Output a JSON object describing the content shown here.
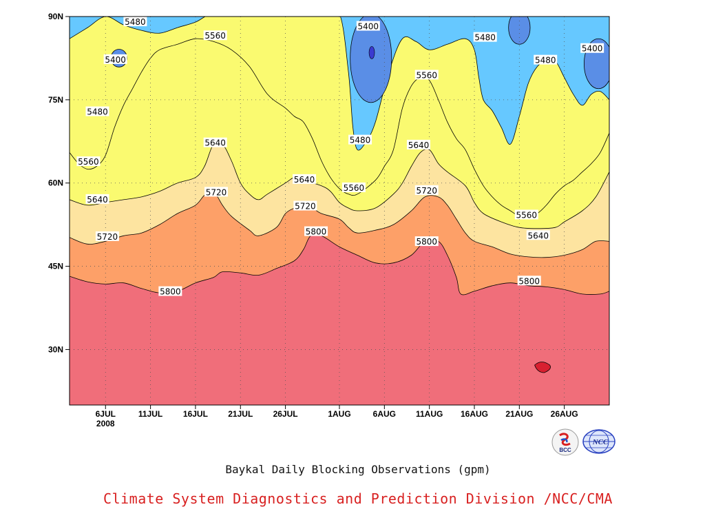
{
  "chart_title": "Baykal Daily Blocking Observations (gpm)",
  "credit": "Climate System Diagnostics and Prediction Division /NCC/CMA",
  "logos": {
    "bcc": {
      "icon": "bcc-logo",
      "text": "BCC"
    },
    "ncc": {
      "icon": "ncc-logo",
      "text": "NCC"
    }
  },
  "chart_data": {
    "type": "contour",
    "title": "Baykal Daily Blocking Observations (gpm)",
    "units": "gpm",
    "x_axis": {
      "start_date": "2008-07-02",
      "end_date": "2008-08-31",
      "ticks": [
        {
          "day": 4,
          "label": "6JUL",
          "sublabel": "2008"
        },
        {
          "day": 9,
          "label": "11JUL"
        },
        {
          "day": 14,
          "label": "16JUL"
        },
        {
          "day": 19,
          "label": "21JUL"
        },
        {
          "day": 24,
          "label": "26JUL"
        },
        {
          "day": 30,
          "label": "1AUG"
        },
        {
          "day": 35,
          "label": "6AUG"
        },
        {
          "day": 40,
          "label": "11AUG"
        },
        {
          "day": 45,
          "label": "16AUG"
        },
        {
          "day": 50,
          "label": "21AUG"
        },
        {
          "day": 55,
          "label": "26AUG"
        }
      ]
    },
    "y_axis": {
      "range": [
        20,
        90
      ],
      "ticks": [
        {
          "value": 30,
          "label": "30N"
        },
        {
          "value": 45,
          "label": "45N"
        },
        {
          "value": 60,
          "label": "60N"
        },
        {
          "value": 75,
          "label": "75N"
        },
        {
          "value": 90,
          "label": "90N"
        }
      ]
    },
    "grid": true,
    "levels": [
      5400,
      5480,
      5560,
      5640,
      5720,
      5800
    ],
    "fill_colors": {
      "lt5400": "#3a3ad0",
      "5400_5480": "#5a8ee6",
      "5480_5560": "#66c8ff",
      "5560_5640": "#fafa70",
      "5640_5720": "#fde4a0",
      "5720_5800": "#fda068",
      "5800_5880": "#ff7848",
      "gt5880": "#f06e7a",
      "max_spot": "#d82030"
    },
    "contours": {
      "c5800": [
        [
          0,
          43.2
        ],
        [
          2,
          42.2
        ],
        [
          4,
          41.8
        ],
        [
          6,
          42
        ],
        [
          8,
          41
        ],
        [
          10,
          40.2
        ],
        [
          12,
          40.5
        ],
        [
          14,
          42
        ],
        [
          16,
          43
        ],
        [
          17,
          44
        ],
        [
          19,
          43.8
        ],
        [
          21,
          43.4
        ],
        [
          23,
          44.6
        ],
        [
          25,
          46
        ],
        [
          26,
          48
        ],
        [
          26.8,
          50.5
        ],
        [
          28,
          50.5
        ],
        [
          30,
          48.5
        ],
        [
          32,
          47
        ],
        [
          34,
          45.6
        ],
        [
          36,
          45.6
        ],
        [
          38,
          47
        ],
        [
          39.5,
          49.5
        ],
        [
          41,
          49.5
        ],
        [
          42,
          47
        ],
        [
          43,
          43
        ],
        [
          43.5,
          40
        ],
        [
          45,
          40.5
        ],
        [
          47,
          41.5
        ],
        [
          49,
          42
        ],
        [
          51,
          41.5
        ],
        [
          53,
          41.3
        ],
        [
          55,
          40.8
        ],
        [
          57,
          40
        ],
        [
          59,
          40
        ],
        [
          60,
          40.5
        ]
      ],
      "c5720": [
        [
          0,
          50.2
        ],
        [
          2,
          49
        ],
        [
          4,
          49.5
        ],
        [
          6,
          50.5
        ],
        [
          8,
          51
        ],
        [
          10,
          52.5
        ],
        [
          12,
          54.5
        ],
        [
          14,
          56
        ],
        [
          15,
          57.8
        ],
        [
          16,
          58.5
        ],
        [
          17,
          56
        ],
        [
          18,
          54
        ],
        [
          20,
          51.5
        ],
        [
          21,
          50.5
        ],
        [
          23,
          52
        ],
        [
          24,
          54.5
        ],
        [
          25,
          55.5
        ],
        [
          26,
          56
        ],
        [
          27,
          55.5
        ],
        [
          28,
          54.5
        ],
        [
          30,
          53.5
        ],
        [
          31,
          52
        ],
        [
          32,
          51
        ],
        [
          34,
          51.5
        ],
        [
          36,
          52.5
        ],
        [
          38,
          55
        ],
        [
          39.5,
          57.5
        ],
        [
          41,
          57.5
        ],
        [
          42,
          56
        ],
        [
          43,
          53.5
        ],
        [
          44,
          51
        ],
        [
          45,
          49.5
        ],
        [
          47,
          48.5
        ],
        [
          49,
          47.2
        ],
        [
          51,
          46.7
        ],
        [
          53,
          46.6
        ],
        [
          55,
          47
        ],
        [
          57,
          48
        ],
        [
          58.5,
          49.5
        ],
        [
          60,
          49.5
        ]
      ],
      "c5640": [
        [
          0,
          57
        ],
        [
          2,
          56
        ],
        [
          4,
          56.5
        ],
        [
          6,
          57
        ],
        [
          8,
          57.5
        ],
        [
          10,
          58.5
        ],
        [
          12,
          60
        ],
        [
          14,
          61
        ],
        [
          15,
          63
        ],
        [
          16,
          67
        ],
        [
          17,
          67
        ],
        [
          18,
          64
        ],
        [
          19,
          60
        ],
        [
          20,
          58
        ],
        [
          21,
          57
        ],
        [
          22,
          58
        ],
        [
          24,
          60
        ],
        [
          25,
          61
        ],
        [
          26,
          60.5
        ],
        [
          28,
          59.5
        ],
        [
          29,
          58.5
        ],
        [
          30,
          56.5
        ],
        [
          31,
          55.5
        ],
        [
          32,
          55
        ],
        [
          34,
          55.5
        ],
        [
          36,
          58
        ],
        [
          37,
          60
        ],
        [
          38,
          63
        ],
        [
          39,
          65.5
        ],
        [
          40,
          66
        ],
        [
          41,
          63.5
        ],
        [
          42,
          62
        ],
        [
          44,
          59.5
        ],
        [
          45,
          56.5
        ],
        [
          46,
          54.5
        ],
        [
          48,
          53
        ],
        [
          50,
          52
        ],
        [
          52,
          51.8
        ],
        [
          54,
          52
        ],
        [
          55,
          53
        ],
        [
          57,
          55
        ],
        [
          58.5,
          57.5
        ],
        [
          60,
          62
        ]
      ],
      "c5560": [
        [
          0,
          65.5
        ],
        [
          1,
          63.5
        ],
        [
          2,
          62.5
        ],
        [
          3,
          63
        ],
        [
          4,
          65
        ],
        [
          5,
          70
        ],
        [
          6,
          74
        ],
        [
          7,
          77
        ],
        [
          8,
          80
        ],
        [
          9,
          82.5
        ],
        [
          10,
          84
        ],
        [
          12,
          85
        ],
        [
          14,
          86
        ],
        [
          16,
          85.5
        ],
        [
          18,
          84
        ],
        [
          20,
          81
        ],
        [
          22,
          76
        ],
        [
          24,
          73.5
        ],
        [
          25,
          72
        ],
        [
          26,
          71
        ],
        [
          27,
          68
        ],
        [
          28,
          64
        ],
        [
          29,
          61
        ],
        [
          30,
          59
        ],
        [
          31,
          58
        ],
        [
          32,
          58
        ],
        [
          34,
          60.5
        ],
        [
          35,
          63
        ],
        [
          36,
          66
        ],
        [
          37,
          73.5
        ],
        [
          38,
          77.5
        ],
        [
          39,
          79
        ],
        [
          40,
          78.5
        ],
        [
          41,
          75
        ],
        [
          42,
          71
        ],
        [
          43,
          68
        ],
        [
          44,
          66
        ],
        [
          45,
          62.5
        ],
        [
          46,
          59.5
        ],
        [
          47,
          57.5
        ],
        [
          48,
          56
        ],
        [
          49,
          55
        ],
        [
          50,
          54
        ],
        [
          51,
          53.8
        ],
        [
          52,
          54.5
        ],
        [
          53,
          56
        ],
        [
          54,
          58
        ],
        [
          55,
          59.5
        ],
        [
          56,
          60.5
        ],
        [
          57,
          62
        ],
        [
          58,
          63.5
        ],
        [
          59,
          65.5
        ],
        [
          60,
          69
        ]
      ]
    },
    "contour_labels": [
      {
        "value": "5480",
        "x": 7.3,
        "y": 89
      },
      {
        "value": "5400",
        "x": 5.1,
        "y": 82.2
      },
      {
        "value": "5480",
        "x": 3.1,
        "y": 72.8
      },
      {
        "value": "5560",
        "x": 2.1,
        "y": 63.8
      },
      {
        "value": "5640",
        "x": 3.1,
        "y": 57
      },
      {
        "value": "5720",
        "x": 4.2,
        "y": 50.3
      },
      {
        "value": "5800",
        "x": 11.2,
        "y": 40.4
      },
      {
        "value": "5560",
        "x": 16.2,
        "y": 86.5
      },
      {
        "value": "5640",
        "x": 16.2,
        "y": 67.2
      },
      {
        "value": "5720",
        "x": 16.3,
        "y": 58.3
      },
      {
        "value": "5640",
        "x": 26.1,
        "y": 60.6
      },
      {
        "value": "5720",
        "x": 26.2,
        "y": 55.8
      },
      {
        "value": "5800",
        "x": 27.4,
        "y": 51.2
      },
      {
        "value": "5400",
        "x": 33.2,
        "y": 88.2
      },
      {
        "value": "5480",
        "x": 32.3,
        "y": 67.7
      },
      {
        "value": "5560",
        "x": 31.6,
        "y": 59.1
      },
      {
        "value": "5560",
        "x": 39.7,
        "y": 79.4
      },
      {
        "value": "5640",
        "x": 38.8,
        "y": 66.8
      },
      {
        "value": "5720",
        "x": 39.7,
        "y": 58.6
      },
      {
        "value": "5800",
        "x": 39.7,
        "y": 49.4
      },
      {
        "value": "5480",
        "x": 46.2,
        "y": 86.2
      },
      {
        "value": "5480",
        "x": 52.9,
        "y": 82.1
      },
      {
        "value": "5400",
        "x": 58.1,
        "y": 84.2
      },
      {
        "value": "5560",
        "x": 50.8,
        "y": 54.2
      },
      {
        "value": "5640",
        "x": 52.1,
        "y": 50.5
      },
      {
        "value": "5800",
        "x": 51.1,
        "y": 42.3
      }
    ],
    "low_centers": [
      {
        "x": 33.5,
        "y": 82.5,
        "rx": 2.3,
        "ry": 8
      },
      {
        "x": 5.5,
        "y": 82.5,
        "rx": 0.9,
        "ry": 1.6
      },
      {
        "x": 58.8,
        "y": 81.5,
        "rx": 1.6,
        "ry": 4.5
      },
      {
        "x": 50,
        "y": 88,
        "rx": 1.2,
        "ry": 3
      }
    ],
    "max_spot": {
      "x": 52.5,
      "y": 27
    }
  }
}
